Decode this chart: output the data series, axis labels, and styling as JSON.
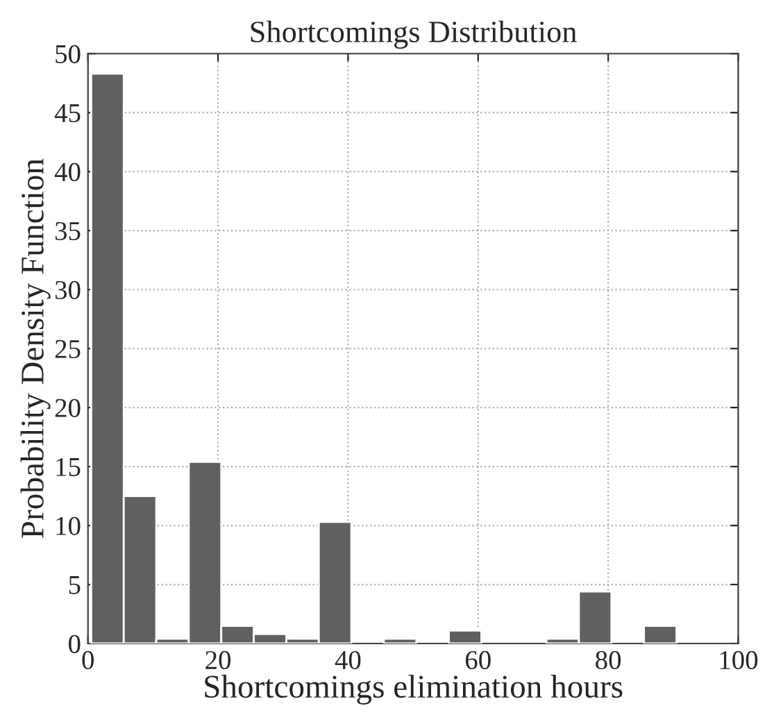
{
  "chart_data": {
    "type": "histogram",
    "title": "Shortcomings Distribution",
    "xlabel": "Shortcomings elimination hours",
    "ylabel": "Probability Density Function",
    "bins": [
      0.5,
      5.5,
      10.5,
      15.5,
      20.5,
      25.5,
      30.5,
      35.5,
      40.5,
      45.5,
      50.5,
      55.5,
      60.5,
      65.5,
      70.5,
      75.5,
      80.5,
      85.5,
      90.5,
      95.5
    ],
    "values": [
      48.3,
      12.5,
      0.4,
      15.4,
      1.5,
      0.8,
      0.4,
      10.3,
      0,
      0.4,
      0,
      1.1,
      0,
      0,
      0.4,
      4.4,
      0,
      1.5,
      0
    ],
    "color": "#606060",
    "xlim": [
      0,
      100
    ],
    "xticks": [
      0,
      20,
      40,
      60,
      80,
      100
    ],
    "ylim": [
      0,
      50
    ],
    "yticks": [
      0,
      5,
      10,
      15,
      20,
      25,
      30,
      35,
      40,
      45,
      50
    ],
    "grid": true
  }
}
